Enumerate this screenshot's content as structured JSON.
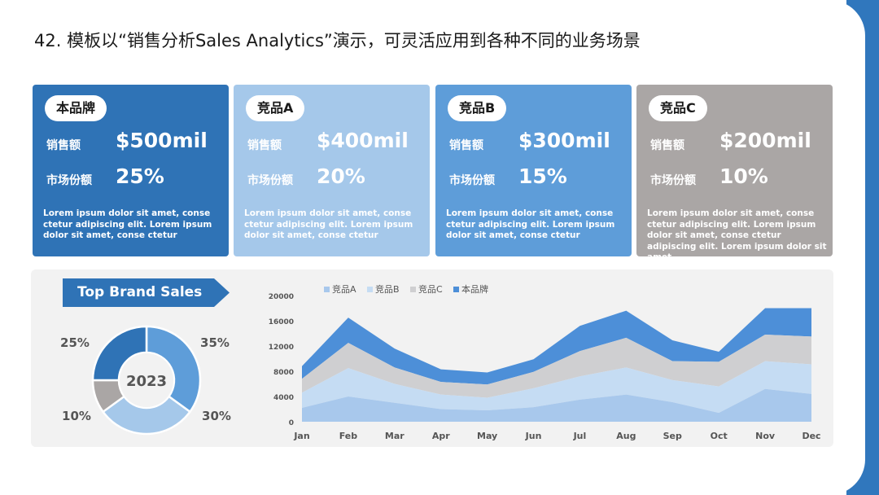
{
  "slide_title": "42. 模板以“销售分析Sales Analytics”演示，可灵活应用到各种不同的业务场景",
  "colors": {
    "brand": "#2f73b6",
    "a": "#a5c8ea",
    "b": "#5e9dd9",
    "c": "#aaa6a5",
    "a_area": "#a8c8ec",
    "b_area": "#c5dcf3",
    "c_area": "#cfcfd1",
    "brand_area": "#4d8fd8"
  },
  "cards": [
    {
      "badge": "本品牌",
      "sales_label": "销售额",
      "sales_value": "$500mil",
      "share_label": "市场份额",
      "share_value": "25%",
      "desc": "Lorem ipsum dolor sit amet, conse ctetur adipiscing elit. Lorem ipsum dolor sit amet, conse ctetur"
    },
    {
      "badge": "竞品A",
      "sales_label": "销售额",
      "sales_value": "$400mil",
      "share_label": "市场份额",
      "share_value": "20%",
      "desc": "Lorem ipsum dolor sit amet, conse ctetur adipiscing elit. Lorem ipsum dolor sit amet, conse ctetur"
    },
    {
      "badge": "竞品B",
      "sales_label": "销售额",
      "sales_value": "$300mil",
      "share_label": "市场份额",
      "share_value": "15%",
      "desc": "Lorem ipsum dolor sit amet, conse ctetur adipiscing elit. Lorem ipsum dolor sit amet, conse ctetur"
    },
    {
      "badge": "竞品C",
      "sales_label": "销售额",
      "sales_value": "$200mil",
      "share_label": "市场份额",
      "share_value": "10%",
      "desc": "Lorem ipsum dolor sit amet, conse ctetur adipiscing elit. Lorem ipsum dolor sit amet, conse ctetur adipiscing elit. Lorem ipsum dolor sit amet"
    }
  ],
  "ribbon_title": "Top Brand Sales",
  "chart_data": [
    {
      "type": "pie",
      "center_label": "2023",
      "slices": [
        {
          "label": "35%",
          "value": 35
        },
        {
          "label": "30%",
          "value": 30
        },
        {
          "label": "10%",
          "value": 10
        },
        {
          "label": "25%",
          "value": 25
        }
      ]
    },
    {
      "type": "area",
      "stacked": true,
      "categories": [
        "Jan",
        "Feb",
        "Mar",
        "Apr",
        "May",
        "Jun",
        "Jul",
        "Aug",
        "Sep",
        "Oct",
        "Nov",
        "Dec"
      ],
      "series": [
        {
          "name": "竞品A",
          "values": [
            2200,
            4000,
            3000,
            2000,
            1800,
            2300,
            3500,
            4300,
            3100,
            1400,
            5200,
            4400
          ]
        },
        {
          "name": "竞品B",
          "values": [
            2400,
            4500,
            3000,
            2300,
            2000,
            3000,
            3700,
            4300,
            3500,
            4200,
            4400,
            4700
          ]
        },
        {
          "name": "竞品C",
          "values": [
            2200,
            4000,
            2600,
            2000,
            2100,
            2600,
            4000,
            4700,
            3000,
            3900,
            4200,
            4400
          ]
        },
        {
          "name": "本品牌",
          "values": [
            2000,
            4000,
            3000,
            2000,
            1900,
            2000,
            4000,
            4300,
            3300,
            1600,
            4200,
            4500
          ]
        }
      ],
      "y_ticks": [
        "0",
        "4000",
        "8000",
        "12000",
        "16000",
        "20000"
      ],
      "ylim": [
        0,
        20000
      ],
      "legend_position": "top"
    }
  ]
}
